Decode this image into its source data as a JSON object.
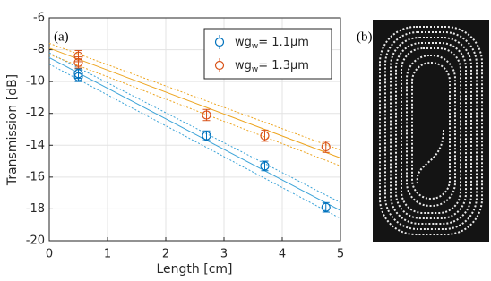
{
  "chart_data": {
    "type": "errorbar",
    "panel_labels": [
      "(a)",
      "(b)"
    ],
    "xlabel": "Length [cm]",
    "ylabel": "Transmission [dB]",
    "xlim": [
      0,
      5
    ],
    "ylim": [
      -20,
      -6
    ],
    "xticks": [
      0,
      1,
      2,
      3,
      4,
      5
    ],
    "yticks": [
      -20,
      -18,
      -16,
      -14,
      -12,
      -10,
      -8,
      -6
    ],
    "grid": true,
    "legend": "upper right",
    "series": [
      {
        "name": "wg",
        "name_subscript": "w",
        "name_suffix": "= 1.1μm",
        "color": "#0072BD",
        "x": [
          0.5,
          0.5,
          2.7,
          3.7,
          4.75
        ],
        "values": [
          -9.5,
          -9.7,
          -13.4,
          -15.3,
          -17.9
        ],
        "errors": [
          0.3,
          0.3,
          0.3,
          0.3,
          0.3
        ]
      },
      {
        "name": "wg",
        "name_subscript": "w",
        "name_suffix": "= 1.3μm",
        "color": "#D95319",
        "x": [
          0.5,
          0.5,
          2.7,
          3.7,
          4.75
        ],
        "values": [
          -8.4,
          -8.8,
          -12.1,
          -13.4,
          -14.1
        ],
        "errors": [
          0.35,
          0.35,
          0.35,
          0.35,
          0.35
        ]
      }
    ],
    "fits": [
      {
        "color": "#3BA3D8",
        "x": [
          0,
          5
        ],
        "values": [
          -8.5,
          -18.1
        ],
        "upper": [
          -8.2,
          -17.6
        ],
        "lower": [
          -8.9,
          -18.6
        ]
      },
      {
        "color": "#EDA520",
        "x": [
          0,
          5
        ],
        "values": [
          -7.9,
          -14.8
        ],
        "upper": [
          -7.6,
          -14.3
        ],
        "lower": [
          -8.3,
          -15.3
        ]
      }
    ]
  }
}
